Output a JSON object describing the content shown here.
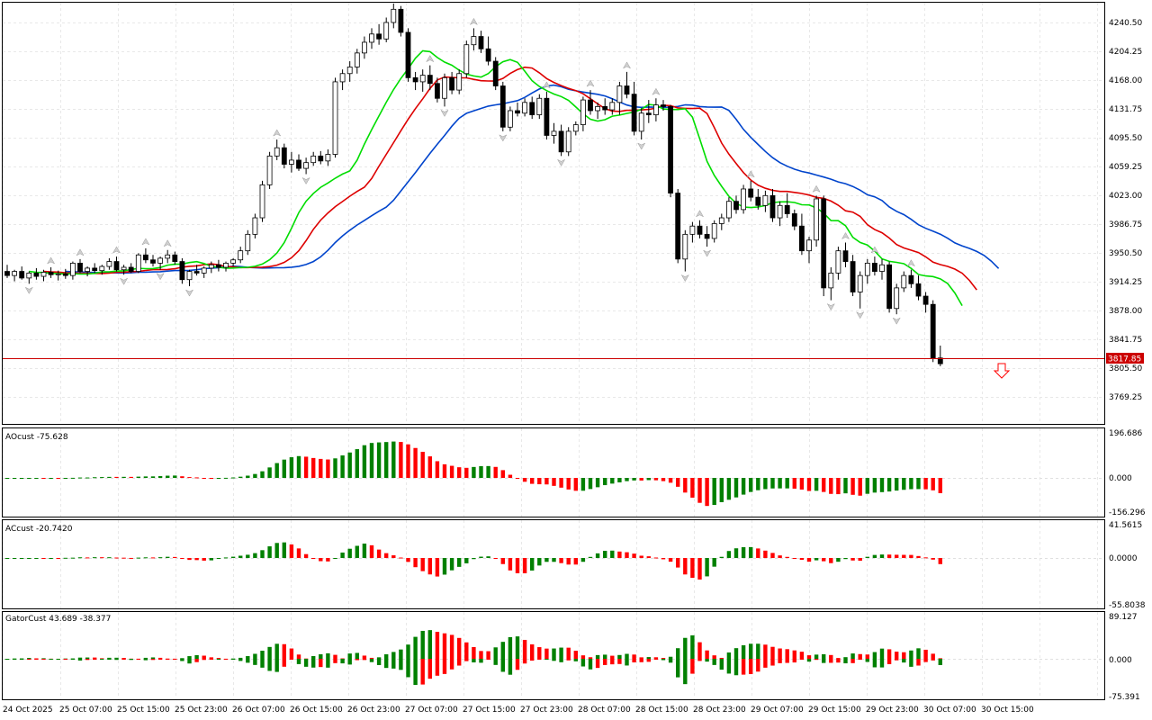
{
  "main": {
    "price_labels": [
      "4240.50",
      "4204.25",
      "4168.00",
      "4131.75",
      "4095.50",
      "4059.25",
      "4023.00",
      "3986.75",
      "3950.50",
      "3914.25",
      "3878.00",
      "3841.75",
      "3805.50",
      "3769.25"
    ],
    "current_price": "3817.85",
    "current_price_value": 3817.85,
    "colors": {
      "bull_candle": "#ffffff",
      "bear_candle": "#000000",
      "lips": "#00dd00",
      "teeth": "#dd0000",
      "jaw": "#0044cc",
      "price_line": "#cc0000",
      "up": "#008000",
      "down": "#ff0000"
    }
  },
  "ao": {
    "title": "AOcust -75.628",
    "scale_labels": [
      "196.686",
      "0.000",
      "-156.296"
    ]
  },
  "ac": {
    "title": "ACcust -20.7420",
    "scale_labels": [
      "41.5615",
      "0.0000",
      "-55.8038"
    ]
  },
  "gator": {
    "title": "GatorCust 43.689 -38.377",
    "scale_labels": [
      "89.127",
      "0.000",
      "-75.391"
    ]
  },
  "time_labels": [
    "24 Oct 2025",
    "25 Oct 07:00",
    "25 Oct 15:00",
    "25 Oct 23:00",
    "26 Oct 07:00",
    "26 Oct 15:00",
    "26 Oct 23:00",
    "27 Oct 07:00",
    "27 Oct 15:00",
    "27 Oct 23:00",
    "28 Oct 07:00",
    "28 Oct 15:00",
    "28 Oct 23:00",
    "29 Oct 07:00",
    "29 Oct 15:00",
    "29 Oct 23:00",
    "30 Oct 07:00",
    "30 Oct 15:00"
  ],
  "chart_data": {
    "type": "candlestick",
    "series": [
      {
        "name": "price",
        "ohlc": [
          [
            3930,
            3938,
            3922,
            3925
          ],
          [
            3925,
            3932,
            3918,
            3930
          ],
          [
            3930,
            3936,
            3920,
            3922
          ],
          [
            3922,
            3930,
            3915,
            3928
          ],
          [
            3928,
            3934,
            3920,
            3924
          ],
          [
            3924,
            3932,
            3918,
            3929
          ],
          [
            3929,
            3935,
            3922,
            3926
          ],
          [
            3926,
            3931,
            3919,
            3927
          ],
          [
            3927,
            3933,
            3921,
            3925
          ],
          [
            3925,
            3942,
            3920,
            3940
          ],
          [
            3940,
            3945,
            3928,
            3930
          ],
          [
            3930,
            3936,
            3924,
            3934
          ],
          [
            3934,
            3940,
            3928,
            3931
          ],
          [
            3931,
            3938,
            3926,
            3936
          ],
          [
            3936,
            3946,
            3932,
            3942
          ],
          [
            3942,
            3948,
            3930,
            3932
          ],
          [
            3932,
            3938,
            3926,
            3935
          ],
          [
            3935,
            3940,
            3928,
            3930
          ],
          [
            3930,
            3952,
            3928,
            3950
          ],
          [
            3950,
            3958,
            3940,
            3944
          ],
          [
            3944,
            3950,
            3936,
            3940
          ],
          [
            3940,
            3948,
            3932,
            3946
          ],
          [
            3946,
            3956,
            3940,
            3950
          ],
          [
            3950,
            3954,
            3938,
            3942
          ],
          [
            3942,
            3946,
            3915,
            3920
          ],
          [
            3920,
            3932,
            3912,
            3930
          ],
          [
            3930,
            3938,
            3925,
            3928
          ],
          [
            3928,
            3936,
            3922,
            3934
          ],
          [
            3934,
            3942,
            3928,
            3938
          ],
          [
            3938,
            3944,
            3930,
            3935
          ],
          [
            3935,
            3942,
            3930,
            3940
          ],
          [
            3940,
            3946,
            3936,
            3944
          ],
          [
            3944,
            3960,
            3940,
            3955
          ],
          [
            3955,
            3980,
            3950,
            3975
          ],
          [
            3975,
            4000,
            3970,
            3995
          ],
          [
            3995,
            4040,
            3990,
            4035
          ],
          [
            4035,
            4075,
            4030,
            4070
          ],
          [
            4070,
            4090,
            4065,
            4080
          ],
          [
            4080,
            4085,
            4055,
            4060
          ],
          [
            4060,
            4075,
            4050,
            4065
          ],
          [
            4065,
            4072,
            4052,
            4055
          ],
          [
            4055,
            4068,
            4048,
            4062
          ],
          [
            4062,
            4075,
            4058,
            4070
          ],
          [
            4070,
            4076,
            4060,
            4064
          ],
          [
            4064,
            4078,
            4058,
            4072
          ],
          [
            4072,
            4165,
            4068,
            4160
          ],
          [
            4160,
            4175,
            4150,
            4170
          ],
          [
            4170,
            4185,
            4160,
            4178
          ],
          [
            4178,
            4200,
            4170,
            4195
          ],
          [
            4195,
            4215,
            4188,
            4208
          ],
          [
            4208,
            4225,
            4200,
            4218
          ],
          [
            4218,
            4230,
            4205,
            4212
          ],
          [
            4212,
            4238,
            4208,
            4232
          ],
          [
            4232,
            4255,
            4225,
            4248
          ],
          [
            4248,
            4252,
            4215,
            4220
          ],
          [
            4220,
            4225,
            4160,
            4165
          ],
          [
            4165,
            4172,
            4150,
            4160
          ],
          [
            4160,
            4175,
            4148,
            4168
          ],
          [
            4168,
            4180,
            4150,
            4158
          ],
          [
            4158,
            4165,
            4135,
            4140
          ],
          [
            4140,
            4170,
            4130,
            4165
          ],
          [
            4165,
            4172,
            4145,
            4150
          ],
          [
            4150,
            4175,
            4145,
            4170
          ],
          [
            4170,
            4210,
            4165,
            4205
          ],
          [
            4205,
            4225,
            4198,
            4215
          ],
          [
            4215,
            4222,
            4195,
            4200
          ],
          [
            4200,
            4215,
            4180,
            4185
          ],
          [
            4185,
            4190,
            4150,
            4155
          ],
          [
            4155,
            4160,
            4100,
            4105
          ],
          [
            4105,
            4130,
            4100,
            4125
          ],
          [
            4125,
            4135,
            4118,
            4122
          ],
          [
            4122,
            4140,
            4118,
            4135
          ],
          [
            4135,
            4142,
            4115,
            4120
          ],
          [
            4120,
            4145,
            4115,
            4140
          ],
          [
            4140,
            4148,
            4090,
            4095
          ],
          [
            4095,
            4110,
            4085,
            4100
          ],
          [
            4100,
            4108,
            4070,
            4075
          ],
          [
            4075,
            4105,
            4070,
            4100
          ],
          [
            4100,
            4112,
            4095,
            4108
          ],
          [
            4108,
            4142,
            4100,
            4138
          ],
          [
            4138,
            4150,
            4120,
            4125
          ],
          [
            4125,
            4135,
            4115,
            4130
          ],
          [
            4130,
            4140,
            4120,
            4126
          ],
          [
            4126,
            4140,
            4120,
            4135
          ],
          [
            4135,
            4160,
            4120,
            4155
          ],
          [
            4155,
            4172,
            4140,
            4145
          ],
          [
            4145,
            4160,
            4095,
            4100
          ],
          [
            4100,
            4128,
            4090,
            4122
          ],
          [
            4122,
            4138,
            4110,
            4120
          ],
          [
            4120,
            4140,
            4112,
            4132
          ],
          [
            4132,
            4138,
            4125,
            4130
          ],
          [
            4130,
            4132,
            4020,
            4025
          ],
          [
            4025,
            4030,
            3940,
            3945
          ],
          [
            3945,
            3980,
            3930,
            3975
          ],
          [
            3975,
            3990,
            3965,
            3985
          ],
          [
            3985,
            3992,
            3970,
            3975
          ],
          [
            3975,
            3985,
            3960,
            3970
          ],
          [
            3970,
            3992,
            3965,
            3988
          ],
          [
            3988,
            4000,
            3980,
            3995
          ],
          [
            3995,
            4020,
            3990,
            4015
          ],
          [
            4015,
            4022,
            4000,
            4005
          ],
          [
            4005,
            4035,
            4000,
            4030
          ],
          [
            4030,
            4040,
            4015,
            4020
          ],
          [
            4020,
            4030,
            4005,
            4010
          ],
          [
            4010,
            4028,
            4002,
            4022
          ],
          [
            4022,
            4030,
            3990,
            3995
          ],
          [
            3995,
            4015,
            3985,
            4010
          ],
          [
            4010,
            4025,
            3995,
            4000
          ],
          [
            4000,
            4005,
            3980,
            3985
          ],
          [
            3985,
            4000,
            3950,
            3955
          ],
          [
            3955,
            3972,
            3940,
            3968
          ],
          [
            3968,
            4022,
            3960,
            4018
          ],
          [
            4018,
            4022,
            3900,
            3910
          ],
          [
            3910,
            3935,
            3895,
            3928
          ],
          [
            3928,
            3960,
            3920,
            3955
          ],
          [
            3955,
            3965,
            3935,
            3942
          ],
          [
            3942,
            3950,
            3900,
            3905
          ],
          [
            3905,
            3930,
            3885,
            3925
          ],
          [
            3925,
            3945,
            3915,
            3940
          ],
          [
            3940,
            3948,
            3925,
            3930
          ],
          [
            3930,
            3945,
            3920,
            3938
          ],
          [
            3938,
            3942,
            3880,
            3885
          ],
          [
            3885,
            3915,
            3878,
            3910
          ],
          [
            3910,
            3930,
            3905,
            3925
          ],
          [
            3925,
            3932,
            3910,
            3915
          ],
          [
            3915,
            3925,
            3895,
            3900
          ],
          [
            3900,
            3905,
            3880,
            3890
          ],
          [
            3890,
            3895,
            3820,
            3825
          ],
          [
            3825,
            3840,
            3815,
            3818
          ]
        ]
      }
    ]
  }
}
